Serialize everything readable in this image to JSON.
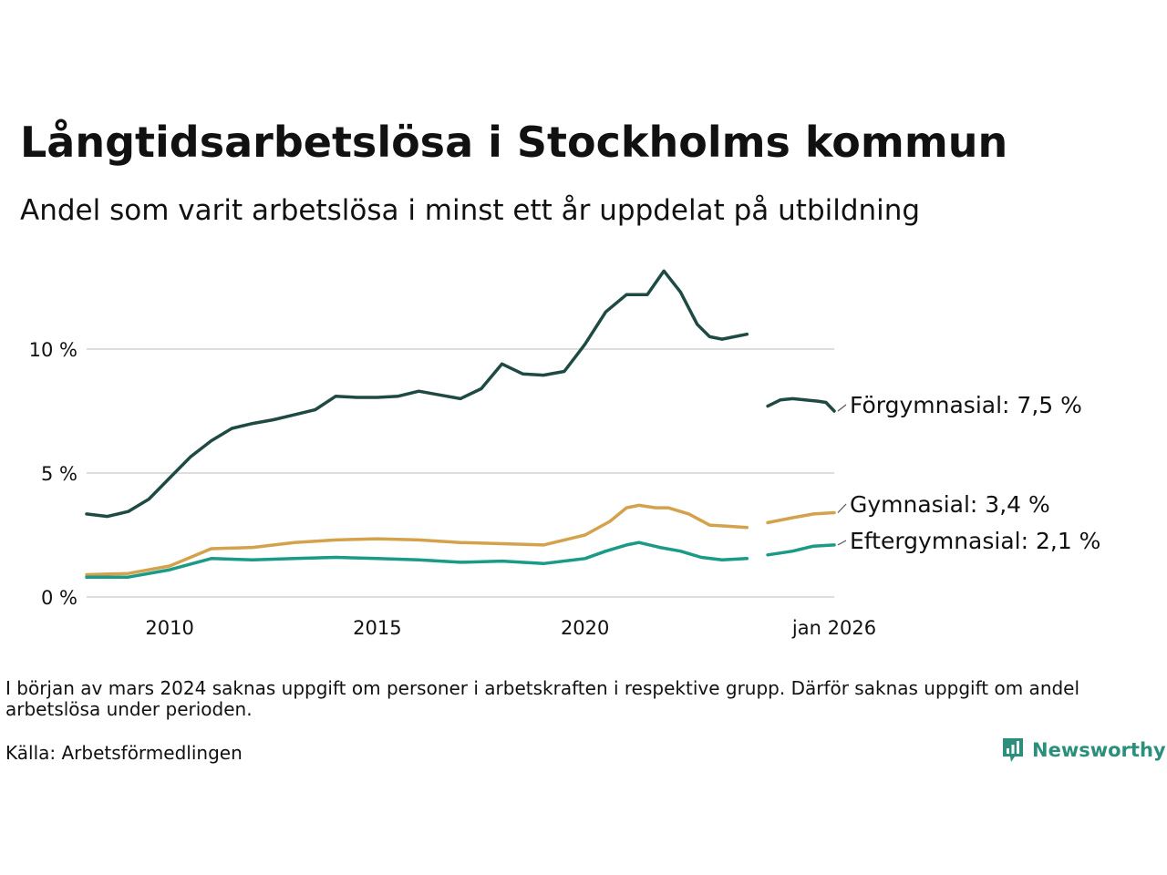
{
  "title": "Långtidsarbetslösa i Stockholms kommun",
  "subtitle": "Andel som varit arbetslösa i minst ett år uppdelat på utbildning",
  "footnote": "I början av mars 2024 saknas uppgift om personer i arbetskraften i respektive grupp. Därför saknas uppgift om andel arbetslösa under perioden.",
  "source": "Källa: Arbetsförmedlingen",
  "logo_text": "Newsworthy",
  "chart_data": {
    "type": "line",
    "title": "Långtidsarbetslösa i Stockholms kommun",
    "xlabel": "",
    "ylabel": "",
    "xlim": [
      2008.0,
      2026.0
    ],
    "ylim": [
      0,
      13.5
    ],
    "grid": true,
    "y_ticks": [
      {
        "value": 0,
        "label": "0 %"
      },
      {
        "value": 5,
        "label": "5 %"
      },
      {
        "value": 10,
        "label": "10 %"
      }
    ],
    "x_ticks": [
      {
        "value": 2010,
        "label": "2010"
      },
      {
        "value": 2015,
        "label": "2015"
      },
      {
        "value": 2020,
        "label": "2020"
      },
      {
        "value": 2026,
        "label": "jan 2026"
      }
    ],
    "series": [
      {
        "name": "Förgymnasial",
        "label": "Förgymnasial: 7,5 %",
        "color": "#1f4a44",
        "segments": [
          [
            [
              2008.0,
              3.35
            ],
            [
              2008.5,
              3.25
            ],
            [
              2009.0,
              3.45
            ],
            [
              2009.5,
              3.95
            ],
            [
              2010.0,
              4.8
            ],
            [
              2010.5,
              5.65
            ],
            [
              2011.0,
              6.3
            ],
            [
              2011.5,
              6.8
            ],
            [
              2012.0,
              7.0
            ],
            [
              2012.5,
              7.15
            ],
            [
              2013.0,
              7.35
            ],
            [
              2013.5,
              7.55
            ],
            [
              2014.0,
              8.1
            ],
            [
              2014.5,
              8.05
            ],
            [
              2015.0,
              8.05
            ],
            [
              2015.5,
              8.1
            ],
            [
              2016.0,
              8.3
            ],
            [
              2016.5,
              8.15
            ],
            [
              2017.0,
              8.0
            ],
            [
              2017.5,
              8.4
            ],
            [
              2018.0,
              9.4
            ],
            [
              2018.5,
              9.0
            ],
            [
              2019.0,
              8.95
            ],
            [
              2019.5,
              9.1
            ],
            [
              2020.0,
              10.2
            ],
            [
              2020.5,
              11.5
            ],
            [
              2021.0,
              12.2
            ],
            [
              2021.5,
              12.2
            ],
            [
              2021.9,
              13.15
            ],
            [
              2022.3,
              12.3
            ],
            [
              2022.7,
              11.0
            ],
            [
              2023.0,
              10.5
            ],
            [
              2023.3,
              10.4
            ],
            [
              2023.6,
              10.5
            ],
            [
              2023.9,
              10.6
            ]
          ],
          [
            [
              2024.4,
              7.7
            ],
            [
              2024.7,
              7.95
            ],
            [
              2025.0,
              8.0
            ],
            [
              2025.3,
              7.95
            ],
            [
              2025.6,
              7.9
            ],
            [
              2025.8,
              7.85
            ],
            [
              2026.0,
              7.5
            ]
          ]
        ]
      },
      {
        "name": "Gymnasial",
        "label": "Gymnasial: 3,4 %",
        "color": "#d4a24c",
        "segments": [
          [
            [
              2008.0,
              0.9
            ],
            [
              2009.0,
              0.95
            ],
            [
              2010.0,
              1.25
            ],
            [
              2011.0,
              1.95
            ],
            [
              2012.0,
              2.0
            ],
            [
              2013.0,
              2.2
            ],
            [
              2014.0,
              2.3
            ],
            [
              2015.0,
              2.35
            ],
            [
              2016.0,
              2.3
            ],
            [
              2017.0,
              2.2
            ],
            [
              2018.0,
              2.15
            ],
            [
              2019.0,
              2.1
            ],
            [
              2020.0,
              2.5
            ],
            [
              2020.6,
              3.05
            ],
            [
              2021.0,
              3.6
            ],
            [
              2021.3,
              3.7
            ],
            [
              2021.7,
              3.6
            ],
            [
              2022.0,
              3.6
            ],
            [
              2022.5,
              3.35
            ],
            [
              2023.0,
              2.9
            ],
            [
              2023.5,
              2.85
            ],
            [
              2023.9,
              2.8
            ]
          ],
          [
            [
              2024.4,
              3.0
            ],
            [
              2025.0,
              3.2
            ],
            [
              2025.5,
              3.35
            ],
            [
              2026.0,
              3.4
            ]
          ]
        ]
      },
      {
        "name": "Eftergymnasial",
        "label": "Eftergymnasial: 2,1 %",
        "color": "#1a9a87",
        "segments": [
          [
            [
              2008.0,
              0.8
            ],
            [
              2009.0,
              0.8
            ],
            [
              2010.0,
              1.1
            ],
            [
              2011.0,
              1.55
            ],
            [
              2012.0,
              1.5
            ],
            [
              2013.0,
              1.55
            ],
            [
              2014.0,
              1.6
            ],
            [
              2015.0,
              1.55
            ],
            [
              2016.0,
              1.5
            ],
            [
              2017.0,
              1.4
            ],
            [
              2018.0,
              1.45
            ],
            [
              2019.0,
              1.35
            ],
            [
              2020.0,
              1.55
            ],
            [
              2020.5,
              1.85
            ],
            [
              2021.0,
              2.1
            ],
            [
              2021.3,
              2.2
            ],
            [
              2021.8,
              2.0
            ],
            [
              2022.3,
              1.85
            ],
            [
              2022.8,
              1.6
            ],
            [
              2023.3,
              1.5
            ],
            [
              2023.9,
              1.55
            ]
          ],
          [
            [
              2024.4,
              1.7
            ],
            [
              2025.0,
              1.85
            ],
            [
              2025.5,
              2.05
            ],
            [
              2026.0,
              2.1
            ]
          ]
        ]
      }
    ]
  }
}
